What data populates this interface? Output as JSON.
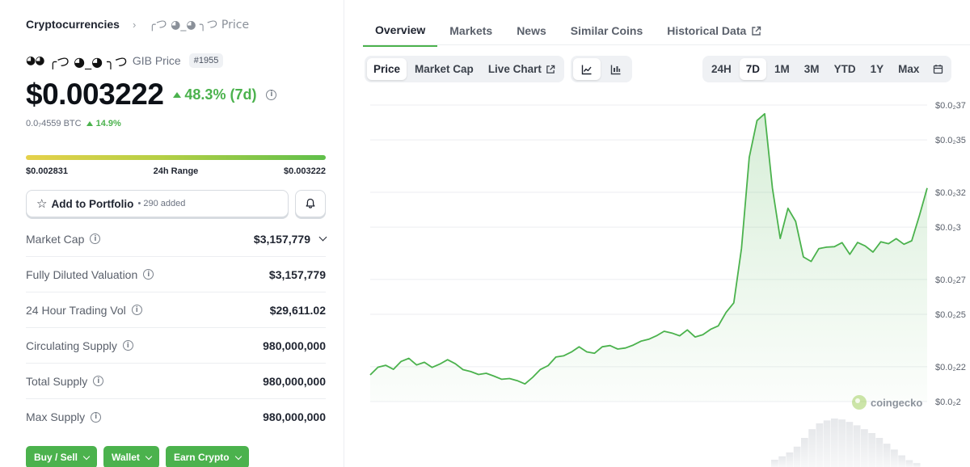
{
  "breadcrumb": {
    "root": "Cryptocurrencies",
    "current": "╭つ ◕_◕ ╮つ Price"
  },
  "coin": {
    "logo": "◕◕",
    "name": "╭つ ◕_◕ ╮つ",
    "symbol_label": "GIB Price",
    "rank": "#1955"
  },
  "price": {
    "value": "$0.003222",
    "change": "48.3% (7d)",
    "btc_value": "0.0₇4559 BTC",
    "btc_change": "14.9%"
  },
  "range": {
    "low": "$0.002831",
    "label": "24h Range",
    "high": "$0.003222",
    "position_fraction": 1.0
  },
  "portfolio": {
    "label": "Add to Portfolio",
    "added": "• 290 added"
  },
  "stats": [
    {
      "label": "Market Cap",
      "value": "$3,157,779",
      "has_dropdown": true
    },
    {
      "label": "Fully Diluted Valuation",
      "value": "$3,157,779"
    },
    {
      "label": "24 Hour Trading Vol",
      "value": "$29,611.02"
    },
    {
      "label": "Circulating Supply",
      "value": "980,000,000"
    },
    {
      "label": "Total Supply",
      "value": "980,000,000"
    },
    {
      "label": "Max Supply",
      "value": "980,000,000"
    }
  ],
  "actions": [
    "Buy / Sell",
    "Wallet",
    "Earn Crypto"
  ],
  "tabs": [
    "Overview",
    "Markets",
    "News",
    "Similar Coins",
    "Historical Data"
  ],
  "active_tab": "Overview",
  "chart_types": {
    "price": "Price",
    "market_cap": "Market Cap",
    "live_chart": "Live Chart"
  },
  "ranges": [
    "24H",
    "7D",
    "1M",
    "3M",
    "YTD",
    "1Y",
    "Max"
  ],
  "active_range": "7D",
  "colors": {
    "accent": "#4bb24d",
    "line": "#4bb24d"
  },
  "watermark": "coingecko",
  "chart_data": {
    "type": "line",
    "title": "",
    "xlabel": "",
    "ylabel": "",
    "y_ticks": [
      "$0.0₂37",
      "$0.0₂35",
      "$0.0₂32",
      "$0.0₂3",
      "$0.0₂27",
      "$0.0₂25",
      "$0.0₂22",
      "$0.0₂2"
    ],
    "y_tick_values": [
      0.0037,
      0.0035,
      0.0032,
      0.003,
      0.0027,
      0.0025,
      0.0022,
      0.002
    ],
    "ylim": [
      0.002,
      0.0037
    ],
    "series": [
      {
        "name": "Price",
        "values": [
          0.002153,
          0.002197,
          0.002208,
          0.002185,
          0.00223,
          0.002248,
          0.00221,
          0.002225,
          0.002196,
          0.002215,
          0.00224,
          0.002217,
          0.002183,
          0.002172,
          0.002155,
          0.002162,
          0.002146,
          0.002128,
          0.002132,
          0.00212,
          0.002101,
          0.002139,
          0.002184,
          0.002206,
          0.002255,
          0.002262,
          0.002284,
          0.002314,
          0.002285,
          0.002277,
          0.002314,
          0.002321,
          0.002301,
          0.002307,
          0.002324,
          0.002346,
          0.002357,
          0.002377,
          0.002403,
          0.002393,
          0.002377,
          0.002411,
          0.00237,
          0.002383,
          0.002414,
          0.002434,
          0.002511,
          0.002566,
          0.002878,
          0.0034,
          0.003611,
          0.00365,
          0.003223,
          0.002935,
          0.003108,
          0.003033,
          0.002829,
          0.002803,
          0.002877,
          0.002885,
          0.002888,
          0.002911,
          0.002844,
          0.002912,
          0.002892,
          0.002857,
          0.002916,
          0.002905,
          0.002934,
          0.002902,
          0.002922,
          0.003066,
          0.003224
        ]
      }
    ],
    "volume": [
      0.15,
      0.22,
      0.3,
      0.42,
      0.6,
      0.78,
      0.9,
      0.96,
      1.0,
      0.98,
      0.93,
      0.86,
      0.78,
      0.7,
      0.6,
      0.48,
      0.36,
      0.24,
      0.14,
      0.08
    ]
  }
}
